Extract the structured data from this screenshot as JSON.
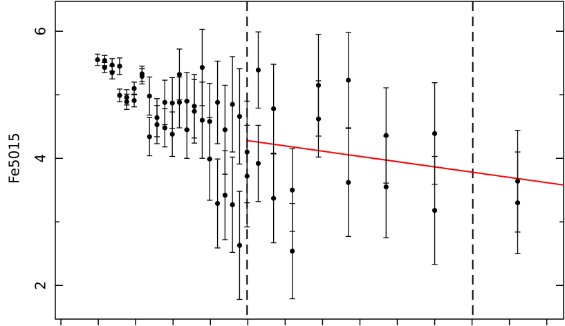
{
  "chart_data": {
    "type": "scatter",
    "ylabel": "Fe5015",
    "xlim": [
      -0.15,
      13.45
    ],
    "xticks": [
      0,
      1,
      2,
      3,
      4,
      5,
      6,
      7,
      8,
      9,
      10,
      11,
      12,
      13
    ],
    "ylim": [
      1.47,
      6.47
    ],
    "yticks": [
      2,
      4,
      6
    ],
    "yminor_ticks": [
      3,
      5
    ],
    "series": [
      {
        "name": null,
        "color": "#000000",
        "x": [
          0.98,
          1.17,
          1.17,
          1.37,
          1.37,
          1.57,
          1.57,
          1.76,
          1.76,
          1.96,
          1.96,
          2.17,
          2.17,
          2.37,
          2.37,
          2.57,
          2.57,
          2.78,
          2.78,
          2.98,
          2.98,
          3.17,
          3.17,
          3.37,
          3.37,
          3.57,
          3.57,
          3.78,
          3.78,
          3.98,
          3.98,
          4.19,
          4.19,
          4.39,
          4.39,
          4.59,
          4.59,
          4.78,
          4.78,
          4.98,
          4.98,
          5.28,
          5.28,
          5.69,
          5.69,
          6.19,
          6.19,
          6.89,
          6.89,
          7.69,
          7.69,
          8.7,
          8.7,
          10.0,
          10.0,
          12.22,
          12.22
        ],
        "values": [
          5.55,
          5.54,
          5.43,
          5.47,
          5.35,
          5.45,
          4.99,
          4.96,
          4.89,
          5.1,
          4.91,
          5.33,
          5.29,
          4.98,
          4.34,
          4.64,
          4.53,
          4.88,
          4.48,
          4.87,
          4.38,
          5.32,
          4.88,
          4.9,
          4.45,
          4.82,
          4.74,
          5.43,
          4.6,
          4.58,
          3.99,
          4.88,
          3.29,
          4.45,
          3.42,
          4.85,
          3.27,
          4.66,
          2.63,
          4.1,
          3.72,
          5.39,
          3.92,
          4.78,
          3.37,
          3.5,
          2.54,
          5.15,
          4.62,
          5.23,
          3.62,
          4.36,
          3.55,
          4.39,
          3.18,
          3.64,
          3.3
        ],
        "errors": [
          0.09,
          0.08,
          0.08,
          0.1,
          0.1,
          0.13,
          0.1,
          0.12,
          0.12,
          0.1,
          0.1,
          0.12,
          0.12,
          0.3,
          0.3,
          0.3,
          0.3,
          0.35,
          0.3,
          0.4,
          0.35,
          0.4,
          0.4,
          0.45,
          0.45,
          0.5,
          0.5,
          0.6,
          0.6,
          0.6,
          0.65,
          0.65,
          0.7,
          0.7,
          0.7,
          0.75,
          0.75,
          0.75,
          0.85,
          0.8,
          0.8,
          0.6,
          0.6,
          0.7,
          0.7,
          0.65,
          0.75,
          0.8,
          0.6,
          0.75,
          0.85,
          0.75,
          0.8,
          0.8,
          0.85,
          0.8,
          0.8
        ]
      }
    ],
    "fit": {
      "color": "#ff0000",
      "x": [
        4.98,
        13.45
      ],
      "values": [
        4.28,
        3.58
      ]
    },
    "vlines": [
      4.98,
      11.02
    ]
  }
}
